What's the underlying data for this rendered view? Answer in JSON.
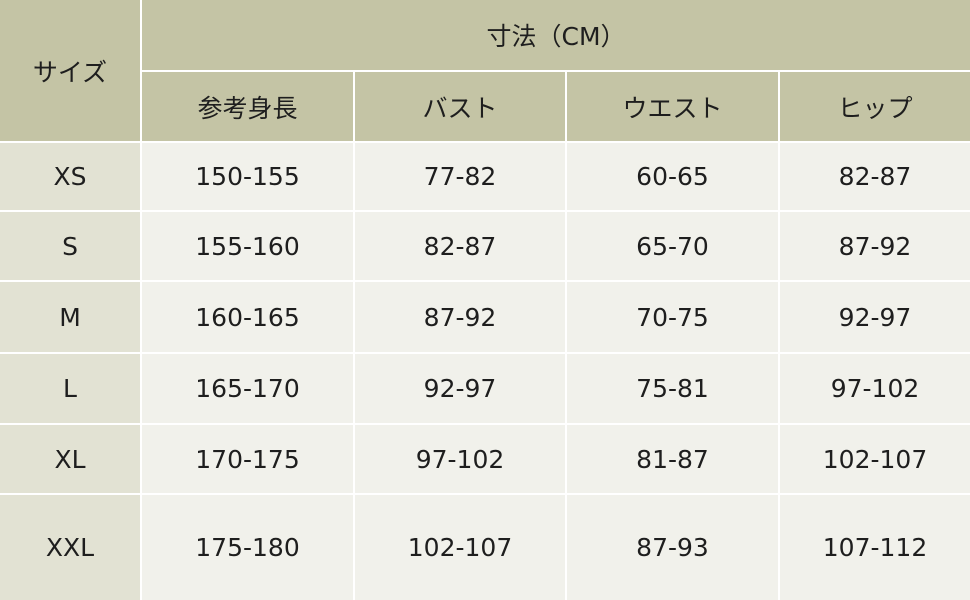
{
  "header": {
    "size_label": "サイズ",
    "dimension_label": "寸法（CM）",
    "columns": [
      "参考身長",
      "バスト",
      "ウエスト",
      "ヒップ"
    ]
  },
  "rows": [
    {
      "size": "XS",
      "values": [
        "150-155",
        "77-82",
        "60-65",
        "82-87"
      ]
    },
    {
      "size": "S",
      "values": [
        "155-160",
        "82-87",
        "65-70",
        "87-92"
      ]
    },
    {
      "size": "M",
      "values": [
        "160-165",
        "87-92",
        "70-75",
        "92-97"
      ]
    },
    {
      "size": "L",
      "values": [
        "165-170",
        "92-97",
        "75-81",
        "97-102"
      ]
    },
    {
      "size": "XL",
      "values": [
        "170-175",
        "97-102",
        "81-87",
        "102-107"
      ]
    },
    {
      "size": "XXL",
      "values": [
        "175-180",
        "102-107",
        "87-93",
        "107-112"
      ]
    }
  ],
  "colors": {
    "header": "#c4c4a5",
    "size_column": "#e2e2d3",
    "cells": "#f1f1eb",
    "borders": "#ffffff"
  }
}
